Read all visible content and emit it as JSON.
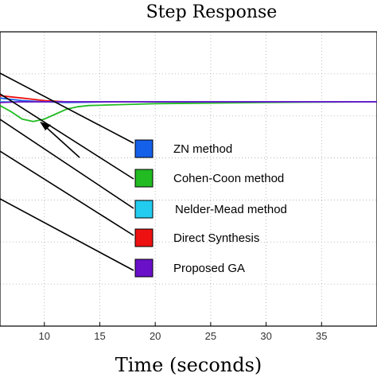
{
  "chart_data": {
    "type": "line",
    "title": "Step Response",
    "xlabel": "Time (seconds)",
    "ylabel": "",
    "xlim": [
      6,
      40
    ],
    "x_ticks": [
      10,
      15,
      20,
      25,
      30,
      35
    ],
    "grid": true,
    "legend_position": "right",
    "series": [
      {
        "name": "ZN method",
        "color": "#1560e8",
        "x": [
          6,
          8,
          10,
          12,
          14,
          16,
          20,
          25,
          30,
          35,
          40
        ],
        "y": [
          1.03,
          1.01,
          1.0,
          0.995,
          0.997,
          1.0,
          1.0,
          1.0,
          1.0,
          1.0,
          1.0
        ]
      },
      {
        "name": "Cohen-Coon method",
        "color": "#22bb22",
        "x": [
          6,
          7,
          8,
          9,
          10,
          11,
          12,
          13,
          14,
          16,
          18,
          20,
          25,
          30,
          35,
          40
        ],
        "y": [
          0.97,
          0.92,
          0.86,
          0.84,
          0.86,
          0.9,
          0.94,
          0.96,
          0.97,
          0.975,
          0.98,
          0.985,
          0.99,
          0.995,
          0.998,
          1.0
        ]
      },
      {
        "name": "Nelder-Mead method",
        "color": "#22ccee",
        "x": [
          6,
          8,
          10,
          12,
          14,
          16,
          20,
          25,
          30,
          35,
          40
        ],
        "y": [
          1.0,
          1.0,
          1.0,
          1.0,
          1.0,
          1.0,
          1.0,
          1.0,
          1.0,
          1.0,
          1.0
        ]
      },
      {
        "name": "Direct Synthesis",
        "color": "#ee1111",
        "x": [
          6,
          7,
          8,
          9,
          10,
          12,
          14,
          16,
          20,
          25,
          30,
          35,
          40
        ],
        "y": [
          1.05,
          1.04,
          1.03,
          1.02,
          1.01,
          1.0,
          1.0,
          1.0,
          1.0,
          1.0,
          1.0,
          1.0,
          1.0
        ]
      },
      {
        "name": "Proposed GA",
        "color": "#6a10c8",
        "x": [
          6,
          8,
          10,
          12,
          14,
          16,
          20,
          25,
          30,
          35,
          40
        ],
        "y": [
          0.995,
          1.0,
          1.0,
          1.0,
          1.0,
          1.0,
          1.0,
          1.0,
          1.0,
          1.0,
          1.0
        ]
      }
    ]
  }
}
